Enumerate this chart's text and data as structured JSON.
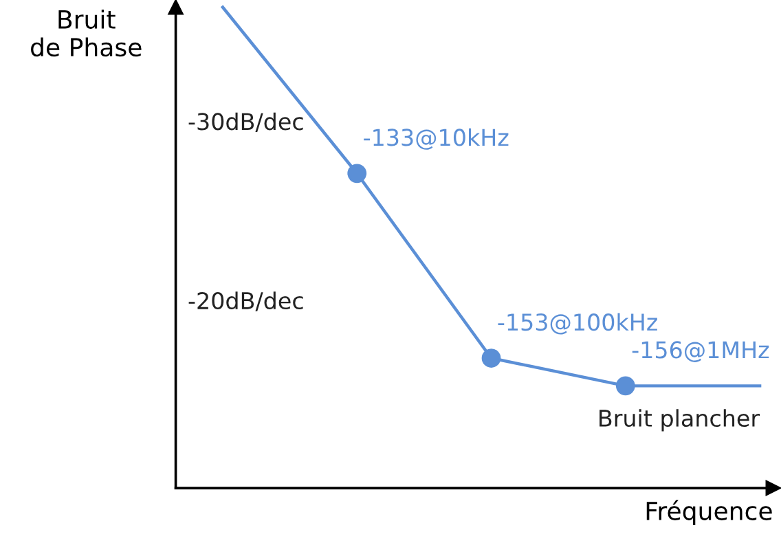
{
  "chart_data": {
    "type": "line",
    "xlabel": "Fréquence",
    "ylabel": "Bruit\nde Phase",
    "marker": "circle",
    "line_style": "solid",
    "categories": [
      null,
      null,
      null,
      null,
      null
    ],
    "series": [
      {
        "color": "#5b8fd6",
        "values": [
          -115,
          -133,
          -153,
          -156,
          -156
        ],
        "value_labels": [
          null,
          "-133@10kHz",
          "-153@100kHz",
          "-156@1MHz",
          null
        ]
      }
    ],
    "annotations": [
      "-30dB/dec",
      "-20dB/dec",
      "Bruit plancher"
    ]
  }
}
